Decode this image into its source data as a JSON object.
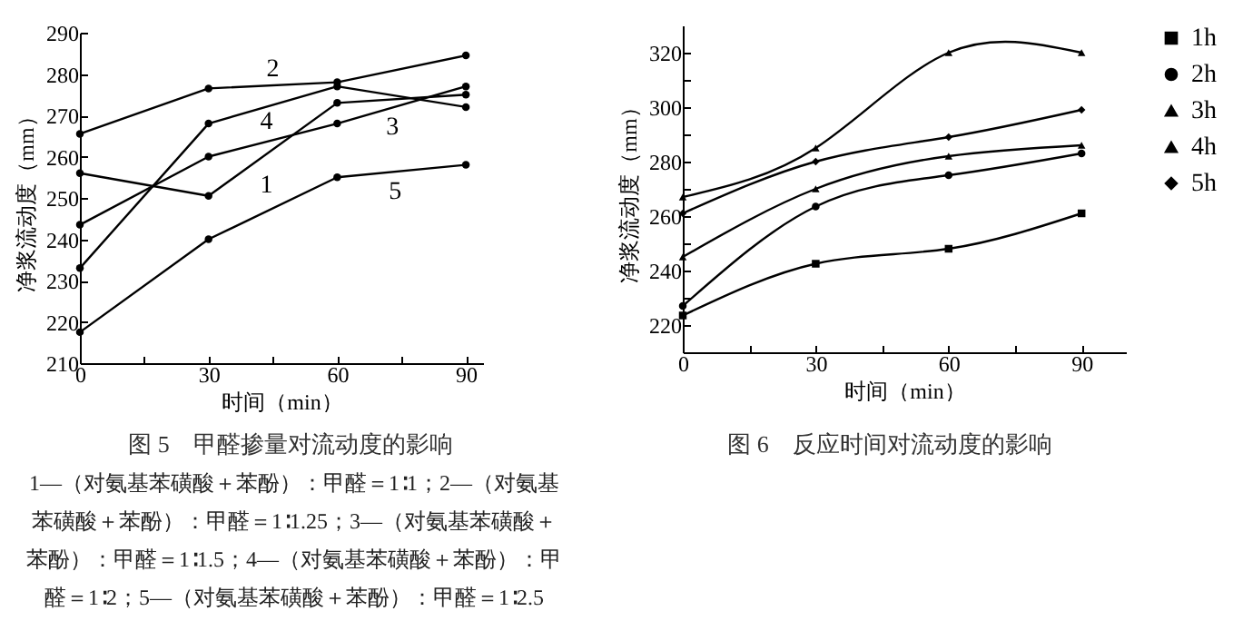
{
  "chart_data": [
    {
      "type": "line",
      "title": "图 5　甲醛掺量对流动度的影响",
      "xlabel": "时间（min）",
      "ylabel": "净浆流动度（mm）",
      "annotations": [
        "1—（对氨基苯磺酸＋苯酚）：甲醛＝1∶1；2—（对氨基苯磺酸＋苯酚）：甲醛＝1∶1.25；3—（对氨基苯磺酸＋苯酚）：甲醛＝1∶1.5；4—（对氨基苯磺酸＋苯酚）：甲醛＝1∶2；5—（对氨基苯磺酸＋苯酚）：甲醛＝1∶2.5"
      ],
      "x": [
        0,
        30,
        60,
        90
      ],
      "xlim": [
        0,
        94
      ],
      "ylim": [
        210,
        290
      ],
      "xticks": [
        0,
        {
          "value": 15,
          "label": null
        },
        30,
        {
          "value": 45,
          "label": null
        },
        60,
        {
          "value": 75,
          "label": null
        },
        90
      ],
      "yticks": [
        210,
        220,
        230,
        240,
        250,
        260,
        270,
        280,
        290
      ],
      "marker": "circle",
      "series": [
        {
          "name": "1",
          "color": "#000000",
          "values": [
            256,
            250.5,
            273,
            275
          ]
        },
        {
          "name": "2",
          "color": "#000000",
          "values": [
            265.5,
            276.5,
            278,
            284.5
          ]
        },
        {
          "name": "3",
          "color": "#000000",
          "values": [
            243.5,
            260,
            268,
            277
          ]
        },
        {
          "name": "4",
          "color": "#000000",
          "values": [
            233,
            268,
            277,
            272
          ]
        },
        {
          "name": "5",
          "color": "#000000",
          "values": [
            217.5,
            240,
            255,
            258
          ]
        }
      ]
    },
    {
      "type": "line",
      "title": "图 6　反应时间对流动度的影响",
      "xlabel": "时间（min）",
      "ylabel": "净浆流动度（mm）",
      "x": [
        0,
        30,
        60,
        90
      ],
      "xlim": [
        0,
        100
      ],
      "ylim": [
        210,
        330
      ],
      "xticks": [
        0,
        {
          "value": 15,
          "label": null
        },
        30,
        {
          "value": 45,
          "label": null
        },
        60,
        {
          "value": 75,
          "label": null
        },
        90
      ],
      "yticks": [
        {
          "value": 210,
          "label": null
        },
        220,
        {
          "value": 230,
          "label": null
        },
        240,
        {
          "value": 250,
          "label": null
        },
        260,
        {
          "value": 270,
          "label": null
        },
        280,
        {
          "value": 290,
          "label": null
        },
        300,
        {
          "value": 310,
          "label": null
        },
        320
      ],
      "legend": "right",
      "series": [
        {
          "name": "1h",
          "color": "#000000",
          "marker": "square",
          "values": [
            223.5,
            242.5,
            248,
            261
          ]
        },
        {
          "name": "2h",
          "color": "#000000",
          "marker": "circle",
          "values": [
            227,
            263.5,
            275,
            283
          ]
        },
        {
          "name": "3h",
          "color": "#000000",
          "marker": "triangle",
          "values": [
            245,
            270,
            282,
            286
          ]
        },
        {
          "name": "4h",
          "color": "#000000",
          "marker": "triangle",
          "values": [
            267,
            285,
            320,
            320
          ]
        },
        {
          "name": "5h",
          "color": "#000000",
          "marker": "diamond",
          "values": [
            261,
            280,
            289,
            299
          ]
        }
      ]
    }
  ]
}
